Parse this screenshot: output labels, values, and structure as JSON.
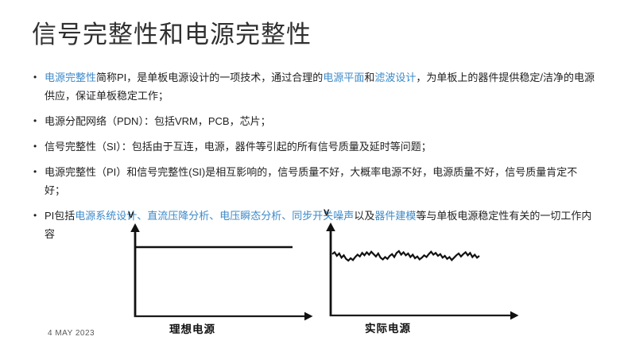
{
  "title": "信号完整性和电源完整性",
  "colors": {
    "link_blue": "#3d8ac9",
    "body_text": "#1f1f1f",
    "title_text": "#303030",
    "chart_ink": "#111111",
    "date_gray": "#595959"
  },
  "bullets": [
    {
      "segments": [
        {
          "text": "电源完整性",
          "link": true
        },
        {
          "text": "简称PI，是单板电源设计的一项技术，通过合理的",
          "link": false
        },
        {
          "text": "电源平面",
          "link": true
        },
        {
          "text": "和",
          "link": false
        },
        {
          "text": "滤波设计",
          "link": true
        },
        {
          "text": "，为单板上的器件提供稳定/洁净的电源供应，保证单板稳定工作；",
          "link": false
        }
      ]
    },
    {
      "segments": [
        {
          "text": "电源分配网络（PDN）：包括VRM，PCB，芯片；",
          "link": false
        }
      ]
    },
    {
      "segments": [
        {
          "text": "信号完整性（SI）：包括由于互连，电源，器件等引起的所有信号质量及延时等问题；",
          "link": false
        }
      ]
    },
    {
      "segments": [
        {
          "text": "电源完整性（PI）和信号完整性(SI)是相互影响的，信号质量不好，大概率电源不好，电源质量不好，信号质量肯定不好；",
          "link": false
        }
      ]
    },
    {
      "segments": [
        {
          "text": "PI包括",
          "link": false
        },
        {
          "text": "电源系统设计、直流压降分析、电压瞬态分析、同步开关噪声",
          "link": true
        },
        {
          "text": "以及",
          "link": false
        },
        {
          "text": "器件建模",
          "link": true
        },
        {
          "text": "等与单板电源稳定性有关的一切工作内容",
          "link": false
        }
      ]
    }
  ],
  "chart_data": [
    {
      "type": "line",
      "title": "理想电源",
      "xlabel": "",
      "ylabel": "V",
      "grid": false,
      "legend": "none",
      "values": [
        1,
        1
      ],
      "note_axis": "unlabeled time axis, constant voltage level"
    },
    {
      "type": "line",
      "title": "实际电源",
      "xlabel": "",
      "ylabel": "V",
      "grid": false,
      "legend": "none",
      "values": [
        1.03,
        1.06,
        1.0,
        1.04,
        0.97,
        1.01,
        0.95,
        0.92,
        0.96,
        0.93,
        0.98,
        1.02,
        0.99,
        1.05,
        1.01,
        1.06,
        1.02,
        1.07,
        1.03,
        0.99,
        1.04,
        0.97,
        0.94,
        0.98,
        0.95,
        1.0,
        1.03,
        0.98,
        1.05,
        1.08,
        1.02,
        1.06,
        1.01,
        1.04,
        0.98,
        1.02,
        0.96,
        0.99,
        0.94,
        0.97,
        1.01,
        0.98,
        1.03,
        1.07,
        1.02,
        1.05,
        1.0,
        1.03,
        0.97,
        1.0,
        0.95,
        0.98,
        0.93,
        0.97,
        1.01,
        1.04,
        0.99,
        1.03,
        1.06,
        1.01,
        1.05,
        0.98,
        1.02,
        0.97,
        1.0
      ],
      "note_axis": "unlabeled time axis, noisy voltage around nominal level"
    }
  ],
  "footer": {
    "date": "4 MAY 2023"
  }
}
